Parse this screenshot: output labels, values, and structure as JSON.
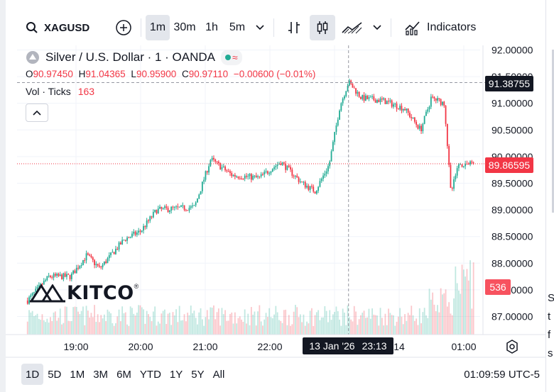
{
  "toolbar": {
    "symbol": "XAGUSD",
    "intervals": [
      {
        "label": "1m",
        "active": true
      },
      {
        "label": "30m",
        "active": false
      },
      {
        "label": "1h",
        "active": false
      },
      {
        "label": "5m",
        "active": false
      }
    ],
    "indicators_label": "Indicators",
    "icons": [
      "search-icon",
      "add-symbol-icon",
      "chevron-down-icon",
      "bar-style-icon",
      "candle-style-icon",
      "area-style-icon",
      "indicators-icon"
    ]
  },
  "legend": {
    "title": "Silver / U.S. Dollar · 1 · OANDA",
    "ohlc": {
      "o_label": "O",
      "o": "90.97450",
      "h_label": "H",
      "h": "91.04365",
      "l_label": "L",
      "l": "90.95900",
      "c_label": "C",
      "c": "90.97110",
      "change": "−0.00600 (−0.01%)"
    },
    "volume_label": "Vol · Ticks",
    "volume_value": "163"
  },
  "watermark": {
    "text": "KITCO",
    "mark": "®"
  },
  "price_tags": {
    "crosshair_price": "91.38755",
    "last_price": "89.86595",
    "volume_last": "536"
  },
  "time_tag": {
    "date": "13 Jan '26",
    "time": "23:13"
  },
  "bottombar": {
    "ranges": [
      {
        "label": "1D",
        "active": true
      },
      {
        "label": "5D",
        "active": false
      },
      {
        "label": "1M",
        "active": false
      },
      {
        "label": "3M",
        "active": false
      },
      {
        "label": "6M",
        "active": false
      },
      {
        "label": "YTD",
        "active": false
      },
      {
        "label": "1Y",
        "active": false
      },
      {
        "label": "5Y",
        "active": false
      },
      {
        "label": "All",
        "active": false
      }
    ],
    "clock": "01:09:59 UTC-5"
  },
  "right_edge_fragments": [
    "S",
    "t",
    "f",
    "s"
  ],
  "colors": {
    "up": "#22ab94",
    "down": "#f23645",
    "text": "#131722",
    "grid": "#f0f3fa"
  },
  "chart_data": {
    "type": "candlestick",
    "symbol": "XAGUSD",
    "y_ticks": [
      92.0,
      91.5,
      91.0,
      90.5,
      90.0,
      89.5,
      89.0,
      88.5,
      88.0,
      87.5,
      87.0
    ],
    "y_tick_labels": [
      "92.00000",
      "91.50000",
      "91.00000",
      "90.50000",
      "90.00000",
      "89.50000",
      "89.00000",
      "88.50000",
      "88.00000",
      "87.50000",
      "87.00000"
    ],
    "ylim": [
      86.65,
      92.3
    ],
    "x_ticks": [
      "19:00",
      "20:00",
      "21:00",
      "22:00",
      "23:00",
      "14",
      "01:00"
    ],
    "crosshair": {
      "time": "23:13",
      "price": 91.38755
    },
    "last_price": 89.86595,
    "price_path_keypoints": [
      {
        "t": "18:15",
        "p": 87.3
      },
      {
        "t": "18:35",
        "p": 87.75
      },
      {
        "t": "18:55",
        "p": 87.75
      },
      {
        "t": "19:10",
        "p": 88.15
      },
      {
        "t": "19:22",
        "p": 87.9
      },
      {
        "t": "19:45",
        "p": 88.45
      },
      {
        "t": "20:00",
        "p": 88.6
      },
      {
        "t": "20:15",
        "p": 89.0
      },
      {
        "t": "20:50",
        "p": 89.05
      },
      {
        "t": "21:05",
        "p": 89.95
      },
      {
        "t": "21:25",
        "p": 89.65
      },
      {
        "t": "21:50",
        "p": 89.6
      },
      {
        "t": "22:10",
        "p": 89.9
      },
      {
        "t": "22:30",
        "p": 89.5
      },
      {
        "t": "22:42",
        "p": 89.35
      },
      {
        "t": "22:55",
        "p": 89.85
      },
      {
        "t": "23:05",
        "p": 90.95
      },
      {
        "t": "23:13",
        "p": 91.4
      },
      {
        "t": "23:25",
        "p": 91.1
      },
      {
        "t": "23:45",
        "p": 91.05
      },
      {
        "t": "00:05",
        "p": 90.9
      },
      {
        "t": "00:20",
        "p": 90.5
      },
      {
        "t": "00:30",
        "p": 91.1
      },
      {
        "t": "00:42",
        "p": 91.0
      },
      {
        "t": "00:48",
        "p": 89.3
      },
      {
        "t": "00:55",
        "p": 89.85
      },
      {
        "t": "01:09",
        "p": 89.87
      }
    ],
    "volume": {
      "label": "Vol · Ticks",
      "last": 536
    }
  }
}
